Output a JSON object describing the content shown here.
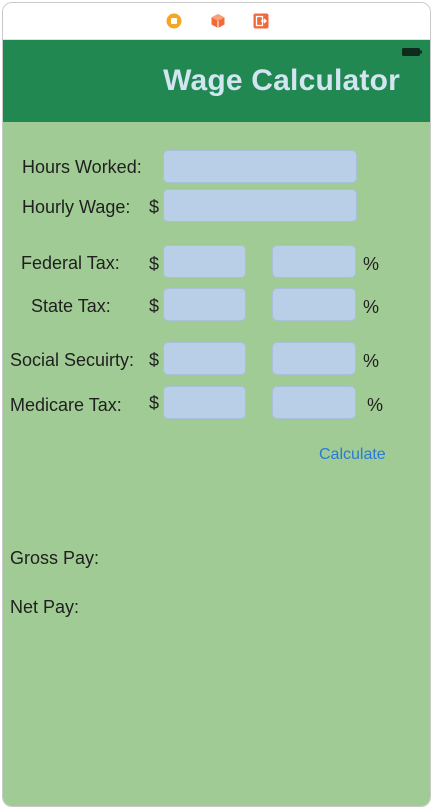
{
  "window": {
    "dock_icons": [
      "stop-icon",
      "cube-icon",
      "exit-icon"
    ],
    "dock_colors": [
      "#f5a623",
      "#f06a3a",
      "#f06a3a"
    ]
  },
  "app": {
    "title": "Wage Calculator",
    "nav_color": "#228852",
    "background_color": "#a0cb94"
  },
  "form": {
    "hours_worked": {
      "label": "Hours Worked:",
      "value": ""
    },
    "hourly_wage": {
      "label": "Hourly Wage:",
      "currency": "$",
      "value": ""
    },
    "federal_tax": {
      "label": "Federal Tax:",
      "currency": "$",
      "amount": "",
      "percent": "",
      "percent_sign": "%"
    },
    "state_tax": {
      "label": "State Tax:",
      "currency": "$",
      "amount": "",
      "percent": "",
      "percent_sign": "%"
    },
    "social_security": {
      "label": "Social Secuirty:",
      "currency": "$",
      "amount": "",
      "percent": "",
      "percent_sign": "%"
    },
    "medicare_tax": {
      "label": "Medicare Tax:",
      "currency": "$",
      "amount": "",
      "percent": "",
      "percent_sign": "%"
    }
  },
  "actions": {
    "calculate_label": "Calculate"
  },
  "results": {
    "gross_pay_label": "Gross Pay:",
    "net_pay_label": "Net Pay:"
  }
}
